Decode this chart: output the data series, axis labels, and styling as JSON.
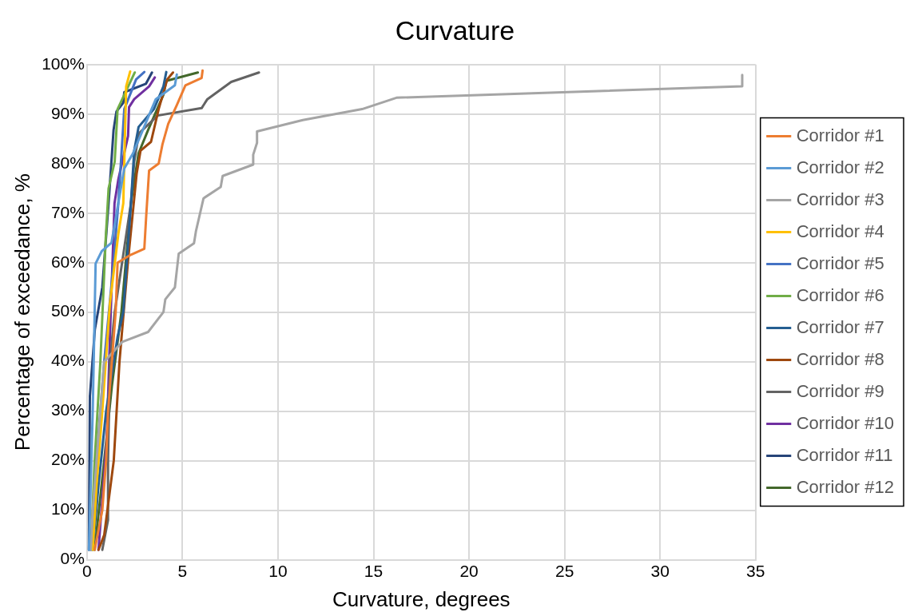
{
  "chart_data": {
    "type": "line",
    "title": "Curvature",
    "xlabel": "Curvature, degrees",
    "ylabel": "Percentage of exceedance, %",
    "xlim": [
      0,
      35
    ],
    "xticks": [
      0,
      5,
      10,
      15,
      20,
      25,
      30,
      35
    ],
    "ylim": [
      0,
      100
    ],
    "yticks": [
      {
        "value": 0,
        "label": "0%"
      },
      {
        "value": 10,
        "label": "10%"
      },
      {
        "value": 20,
        "label": "20%"
      },
      {
        "value": 30,
        "label": "30%"
      },
      {
        "value": 40,
        "label": "40%"
      },
      {
        "value": 50,
        "label": "50%"
      },
      {
        "value": 60,
        "label": "60%"
      },
      {
        "value": 70,
        "label": "70%"
      },
      {
        "value": 80,
        "label": "80%"
      },
      {
        "value": 90,
        "label": "90%"
      },
      {
        "value": 100,
        "label": "100%"
      }
    ],
    "grid": true,
    "legend": "right",
    "marker": "none",
    "line_style": "solid",
    "series": [
      {
        "name": "Corridor #1",
        "color": "#ed7d31",
        "x": [
          0.4,
          0.8,
          1.0,
          1.1,
          1.3,
          1.5,
          1.6,
          2.3,
          3.0,
          3.1,
          3.25,
          3.75,
          3.95,
          4.25,
          4.7,
          5.15,
          6.0,
          6.05
        ],
        "values": [
          2,
          10,
          20,
          30,
          40,
          50,
          60,
          61.6,
          62.8,
          69.5,
          78.6,
          80,
          83.9,
          88,
          91.8,
          95.8,
          97.3,
          98.8
        ]
      },
      {
        "name": "Corridor #2",
        "color": "#5b9bd5",
        "x": [
          0.1,
          0.3,
          0.45,
          0.77,
          1.28,
          1.95,
          2.4,
          3.6,
          4.6,
          4.7
        ],
        "values": [
          2,
          30,
          59.8,
          62.3,
          64,
          79,
          82,
          93,
          95.8,
          98
        ]
      },
      {
        "name": "Corridor #3",
        "color": "#a5a5a5",
        "x": [
          0.2,
          0.3,
          0.5,
          0.7,
          0.9,
          1.85,
          3.2,
          4.0,
          4.1,
          4.6,
          4.8,
          5.6,
          5.7,
          6.1,
          7.0,
          7.1,
          8.7,
          8.7,
          8.9,
          8.9,
          11.3,
          14.4,
          16.2,
          34.3,
          34.3
        ],
        "values": [
          2,
          10,
          20,
          30,
          40,
          44,
          46,
          50,
          52.6,
          55,
          61.8,
          63.9,
          66.3,
          73,
          75.3,
          77.5,
          79.8,
          81.8,
          84.2,
          86.5,
          88.8,
          91,
          93.3,
          95.6,
          97.9
        ]
      },
      {
        "name": "Corridor #4",
        "color": "#ffc000",
        "x": [
          0.3,
          0.5,
          0.8,
          1.2,
          1.64,
          1.9,
          2.05,
          2.26
        ],
        "values": [
          2,
          15,
          30,
          51.8,
          65.8,
          72,
          95.6,
          98.6
        ]
      },
      {
        "name": "Corridor #5",
        "color": "#4472c4",
        "x": [
          0.2,
          0.5,
          0.9,
          1.4,
          1.64,
          1.95,
          2.57,
          3.0
        ],
        "values": [
          2,
          20,
          40,
          60.5,
          72,
          91,
          97,
          98.5
        ]
      },
      {
        "name": "Corridor #6",
        "color": "#70ad47",
        "x": [
          0.2,
          0.4,
          0.7,
          0.98,
          1.13,
          1.45,
          1.6,
          2.5
        ],
        "values": [
          2,
          20,
          40,
          65,
          75,
          80.4,
          91,
          98.4
        ]
      },
      {
        "name": "Corridor #7",
        "color": "#255e91",
        "x": [
          0.3,
          0.6,
          1.0,
          1.6,
          1.9,
          2.3,
          2.47,
          2.7,
          3.5,
          4.0,
          4.15
        ],
        "values": [
          2,
          15,
          30,
          45,
          50,
          72,
          82.6,
          87.4,
          91,
          95.6,
          98.5
        ]
      },
      {
        "name": "Corridor #8",
        "color": "#9e480e",
        "x": [
          0.6,
          0.9,
          1.4,
          1.7,
          2.15,
          2.6,
          2.8,
          3.35,
          3.75,
          4.2,
          4.5
        ],
        "values": [
          2,
          5,
          20,
          40,
          60.5,
          78,
          82.6,
          84.4,
          91,
          97,
          98.4
        ]
      },
      {
        "name": "Corridor #9",
        "color": "#636363",
        "x": [
          0.8,
          1.1,
          1.1,
          1.2,
          1.45,
          2.3,
          2.47,
          2.72,
          3.7,
          6.0,
          6.3,
          7.55,
          9.0
        ],
        "values": [
          2,
          8,
          20,
          40,
          50,
          72,
          80.4,
          86.1,
          89.7,
          91.2,
          93,
          96.5,
          98.4
        ]
      },
      {
        "name": "Corridor #10",
        "color": "#7030a0",
        "x": [
          0.6,
          1.03,
          1.2,
          1.44,
          1.64,
          2.15,
          2.2,
          2.47,
          3.25,
          3.55
        ],
        "values": [
          2,
          24,
          45,
          72,
          76.8,
          85.6,
          91.4,
          93,
          95.6,
          97.4
        ]
      },
      {
        "name": "Corridor #11",
        "color": "#264478",
        "x": [
          0.1,
          0.15,
          0.41,
          0.8,
          1.13,
          1.39,
          1.54,
          1.9,
          1.95,
          3.08,
          3.4
        ],
        "values": [
          2,
          33,
          46.5,
          55,
          72,
          86.8,
          90.5,
          92.3,
          94.4,
          96.1,
          98.4
        ]
      },
      {
        "name": "Corridor #12",
        "color": "#43682b",
        "x": [
          0.4,
          0.9,
          1.3,
          1.8,
          2.3,
          2.7,
          3.2,
          4.0,
          4.15,
          5.8
        ],
        "values": [
          2,
          20,
          35,
          50,
          72,
          82.1,
          86.8,
          93.9,
          96.7,
          98.4
        ]
      }
    ]
  }
}
